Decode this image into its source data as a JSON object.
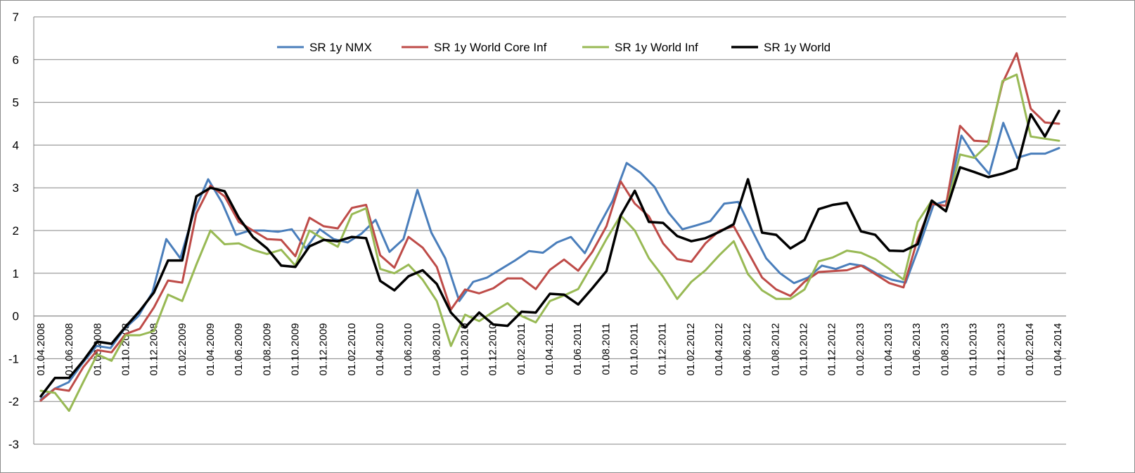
{
  "chart_data": {
    "type": "line",
    "title": "",
    "xlabel": "",
    "ylabel": "",
    "ylim": [
      -3,
      7
    ],
    "yticks": [
      -3,
      -2,
      -1,
      0,
      1,
      2,
      3,
      4,
      5,
      6,
      7
    ],
    "grid": "horizontal",
    "legend_position": "top-center",
    "x_tick_labels": [
      "01.04.2008",
      "01.06.2008",
      "01.08.2008",
      "01.10.2008",
      "01.12.2008",
      "01.02.2009",
      "01.04.2009",
      "01.06.2009",
      "01.08.2009",
      "01.10.2009",
      "01.12.2009",
      "01.02.2010",
      "01.04.2010",
      "01.06.2010",
      "01.08.2010",
      "01.10.2010",
      "01.12.2010",
      "01.02.2011",
      "01.04.2011",
      "01.06.2011",
      "01.08.2011",
      "01.10.2011",
      "01.12.2011",
      "01.02.2012",
      "01.04.2012",
      "01.06.2012",
      "01.08.2012",
      "01.10.2012",
      "01.12.2012",
      "01.02.2013",
      "01.04.2013",
      "01.06.2013",
      "01.08.2013",
      "01.10.2013",
      "01.12.2013",
      "01.02.2014",
      "01.04.2014"
    ],
    "series": [
      {
        "name": "SR 1y NMX",
        "color": "#4a7ebb",
        "values": [
          -1.95,
          -1.7,
          -1.55,
          -1.1,
          -0.7,
          -0.75,
          -0.3,
          0.0,
          0.55,
          1.8,
          1.35,
          2.45,
          3.2,
          2.65,
          1.9,
          2.0,
          2.0,
          1.97,
          2.03,
          1.58,
          2.03,
          1.8,
          1.72,
          1.93,
          2.25,
          1.5,
          1.8,
          2.95,
          1.95,
          1.35,
          0.35,
          0.8,
          0.9,
          1.1,
          1.3,
          1.52,
          1.48,
          1.72,
          1.85,
          1.47,
          2.1,
          2.7,
          3.58,
          3.35,
          3.02,
          2.42,
          2.03,
          2.12,
          2.22,
          2.63,
          2.67,
          2.0,
          1.35,
          1.0,
          0.77,
          0.9,
          1.18,
          1.1,
          1.22,
          1.17,
          0.98,
          0.85,
          0.78,
          1.65,
          2.6,
          2.7,
          4.22,
          3.7,
          3.32,
          4.52,
          3.7,
          3.8,
          3.8,
          3.93
        ]
      },
      {
        "name": "SR 1y World Core Inf",
        "color": "#be4b48",
        "values": [
          -1.98,
          -1.7,
          -1.75,
          -1.2,
          -0.8,
          -0.85,
          -0.42,
          -0.3,
          0.2,
          0.83,
          0.78,
          2.4,
          3.05,
          2.8,
          2.2,
          2.0,
          1.8,
          1.78,
          1.4,
          2.3,
          2.1,
          2.05,
          2.53,
          2.6,
          1.42,
          1.13,
          1.85,
          1.6,
          1.15,
          0.15,
          0.62,
          0.53,
          0.65,
          0.88,
          0.88,
          0.63,
          1.08,
          1.32,
          1.06,
          1.5,
          2.1,
          3.15,
          2.63,
          2.33,
          1.7,
          1.33,
          1.27,
          1.7,
          2.0,
          2.1,
          1.5,
          0.9,
          0.62,
          0.47,
          0.8,
          1.03,
          1.05,
          1.07,
          1.18,
          0.98,
          0.77,
          0.67,
          1.8,
          2.62,
          2.58,
          4.45,
          4.1,
          4.08,
          5.45,
          6.15,
          4.85,
          4.53,
          4.5
        ]
      },
      {
        "name": "SR 1y World Inf",
        "color": "#98b954",
        "values": [
          -1.75,
          -1.8,
          -2.22,
          -1.55,
          -0.9,
          -1.05,
          -0.45,
          -0.45,
          -0.35,
          0.5,
          0.35,
          1.2,
          2.0,
          1.68,
          1.7,
          1.55,
          1.45,
          1.55,
          1.18,
          2.0,
          1.8,
          1.62,
          2.38,
          2.52,
          1.1,
          1.0,
          1.2,
          0.85,
          0.35,
          -0.7,
          0.03,
          -0.12,
          0.1,
          0.3,
          0.0,
          -0.15,
          0.35,
          0.48,
          0.63,
          1.2,
          1.8,
          2.35,
          2.0,
          1.35,
          0.92,
          0.4,
          0.8,
          1.07,
          1.43,
          1.75,
          0.98,
          0.6,
          0.4,
          0.4,
          0.62,
          1.28,
          1.37,
          1.53,
          1.48,
          1.33,
          1.1,
          0.85,
          2.2,
          2.7,
          2.45,
          3.78,
          3.7,
          4.02,
          5.5,
          5.65,
          4.2,
          4.15,
          4.1
        ]
      },
      {
        "name": "SR 1y World",
        "color": "#000000",
        "values": [
          -1.88,
          -1.45,
          -1.45,
          -1.05,
          -0.6,
          -0.65,
          -0.25,
          0.12,
          0.55,
          1.3,
          1.3,
          2.8,
          3.0,
          2.92,
          2.3,
          1.85,
          1.58,
          1.18,
          1.15,
          1.63,
          1.78,
          1.75,
          1.85,
          1.82,
          0.82,
          0.6,
          0.93,
          1.07,
          0.75,
          0.08,
          -0.27,
          0.08,
          -0.2,
          -0.23,
          0.1,
          0.08,
          0.52,
          0.5,
          0.27,
          0.65,
          1.05,
          2.35,
          2.93,
          2.2,
          2.18,
          1.87,
          1.75,
          1.82,
          1.97,
          2.15,
          3.2,
          1.95,
          1.9,
          1.58,
          1.78,
          2.5,
          2.6,
          2.65,
          1.98,
          1.9,
          1.53,
          1.52,
          1.68,
          2.7,
          2.45,
          3.48,
          3.37,
          3.25,
          3.33,
          3.45,
          4.72,
          4.2,
          4.8
        ]
      }
    ]
  }
}
